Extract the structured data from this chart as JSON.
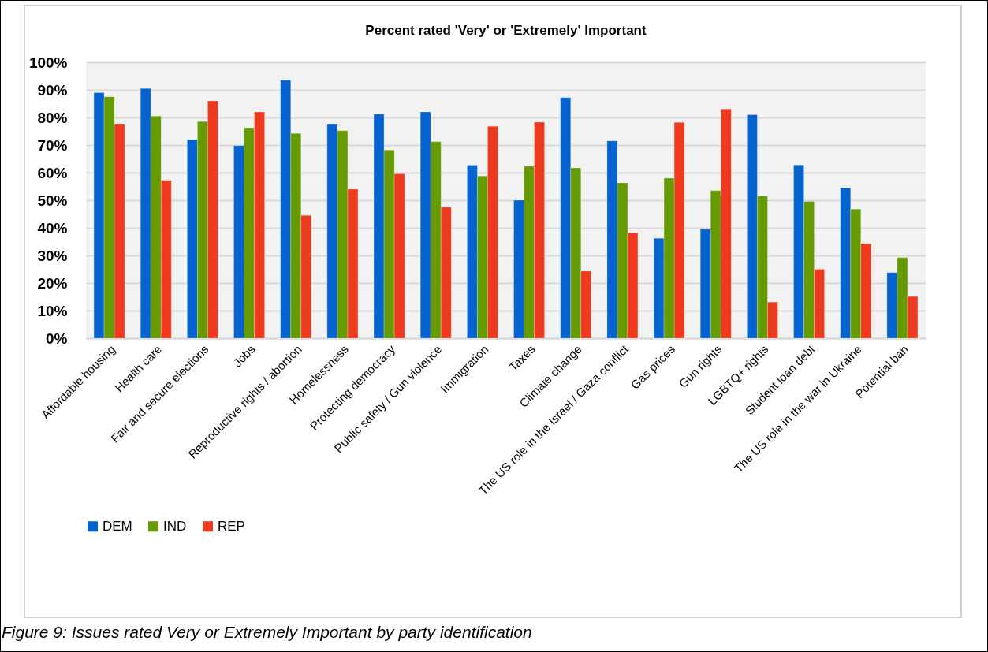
{
  "chart_data": {
    "type": "bar",
    "title": "Percent rated 'Very' or 'Extremely' Important",
    "categories": [
      "Affordable housing",
      "Health care",
      "Fair and secure elections",
      "Jobs",
      "Reproductive rights / abortion",
      "Homelessness",
      "Protecting democracy",
      "Public safety / Gun violence",
      "Immigration",
      "Taxes",
      "Climate change",
      "The US role in the Israel / Gaza conflict",
      "Gas prices",
      "Gun rights",
      "LGBTQ+ rights",
      "Student loan debt",
      "The US role in the war in Ukraine",
      "Potential ban"
    ],
    "series": [
      {
        "name": "DEM",
        "color": "#0563cf",
        "values": [
          89,
          90.5,
          72,
          69.8,
          93.5,
          77.7,
          81.2,
          82,
          62.7,
          50,
          87.2,
          71.5,
          36.2,
          39.5,
          81,
          62.8,
          54.5,
          23.8
        ]
      },
      {
        "name": "IND",
        "color": "#659a00",
        "values": [
          87.5,
          80.5,
          78.5,
          76.3,
          74.2,
          75.2,
          68.2,
          71.2,
          58.8,
          62.3,
          61.7,
          56.3,
          58,
          53.5,
          51.5,
          49.6,
          46.8,
          29.2
        ]
      },
      {
        "name": "REP",
        "color": "#ee3a1f",
        "values": [
          77.7,
          57.2,
          86,
          82,
          44.5,
          54,
          59.6,
          47.5,
          76.8,
          78.3,
          24.3,
          38.2,
          78.2,
          83.1,
          13.1,
          25,
          34.3,
          15.1
        ]
      }
    ],
    "ylim": [
      0,
      100
    ],
    "yticks": [
      {
        "value": 0,
        "label": "0%"
      },
      {
        "value": 10,
        "label": "10%"
      },
      {
        "value": 20,
        "label": "20%"
      },
      {
        "value": 30,
        "label": "30%"
      },
      {
        "value": 40,
        "label": "40%"
      },
      {
        "value": 50,
        "label": "50%"
      },
      {
        "value": 60,
        "label": "60%"
      },
      {
        "value": 70,
        "label": "70%"
      },
      {
        "value": 80,
        "label": "80%"
      },
      {
        "value": 90,
        "label": "90%"
      },
      {
        "value": 100,
        "label": "100%"
      }
    ],
    "grid": "y",
    "legend": "bottom",
    "annotations": [
      "Figure 9: Issues rated Very or Extremely Important by party identification"
    ]
  }
}
